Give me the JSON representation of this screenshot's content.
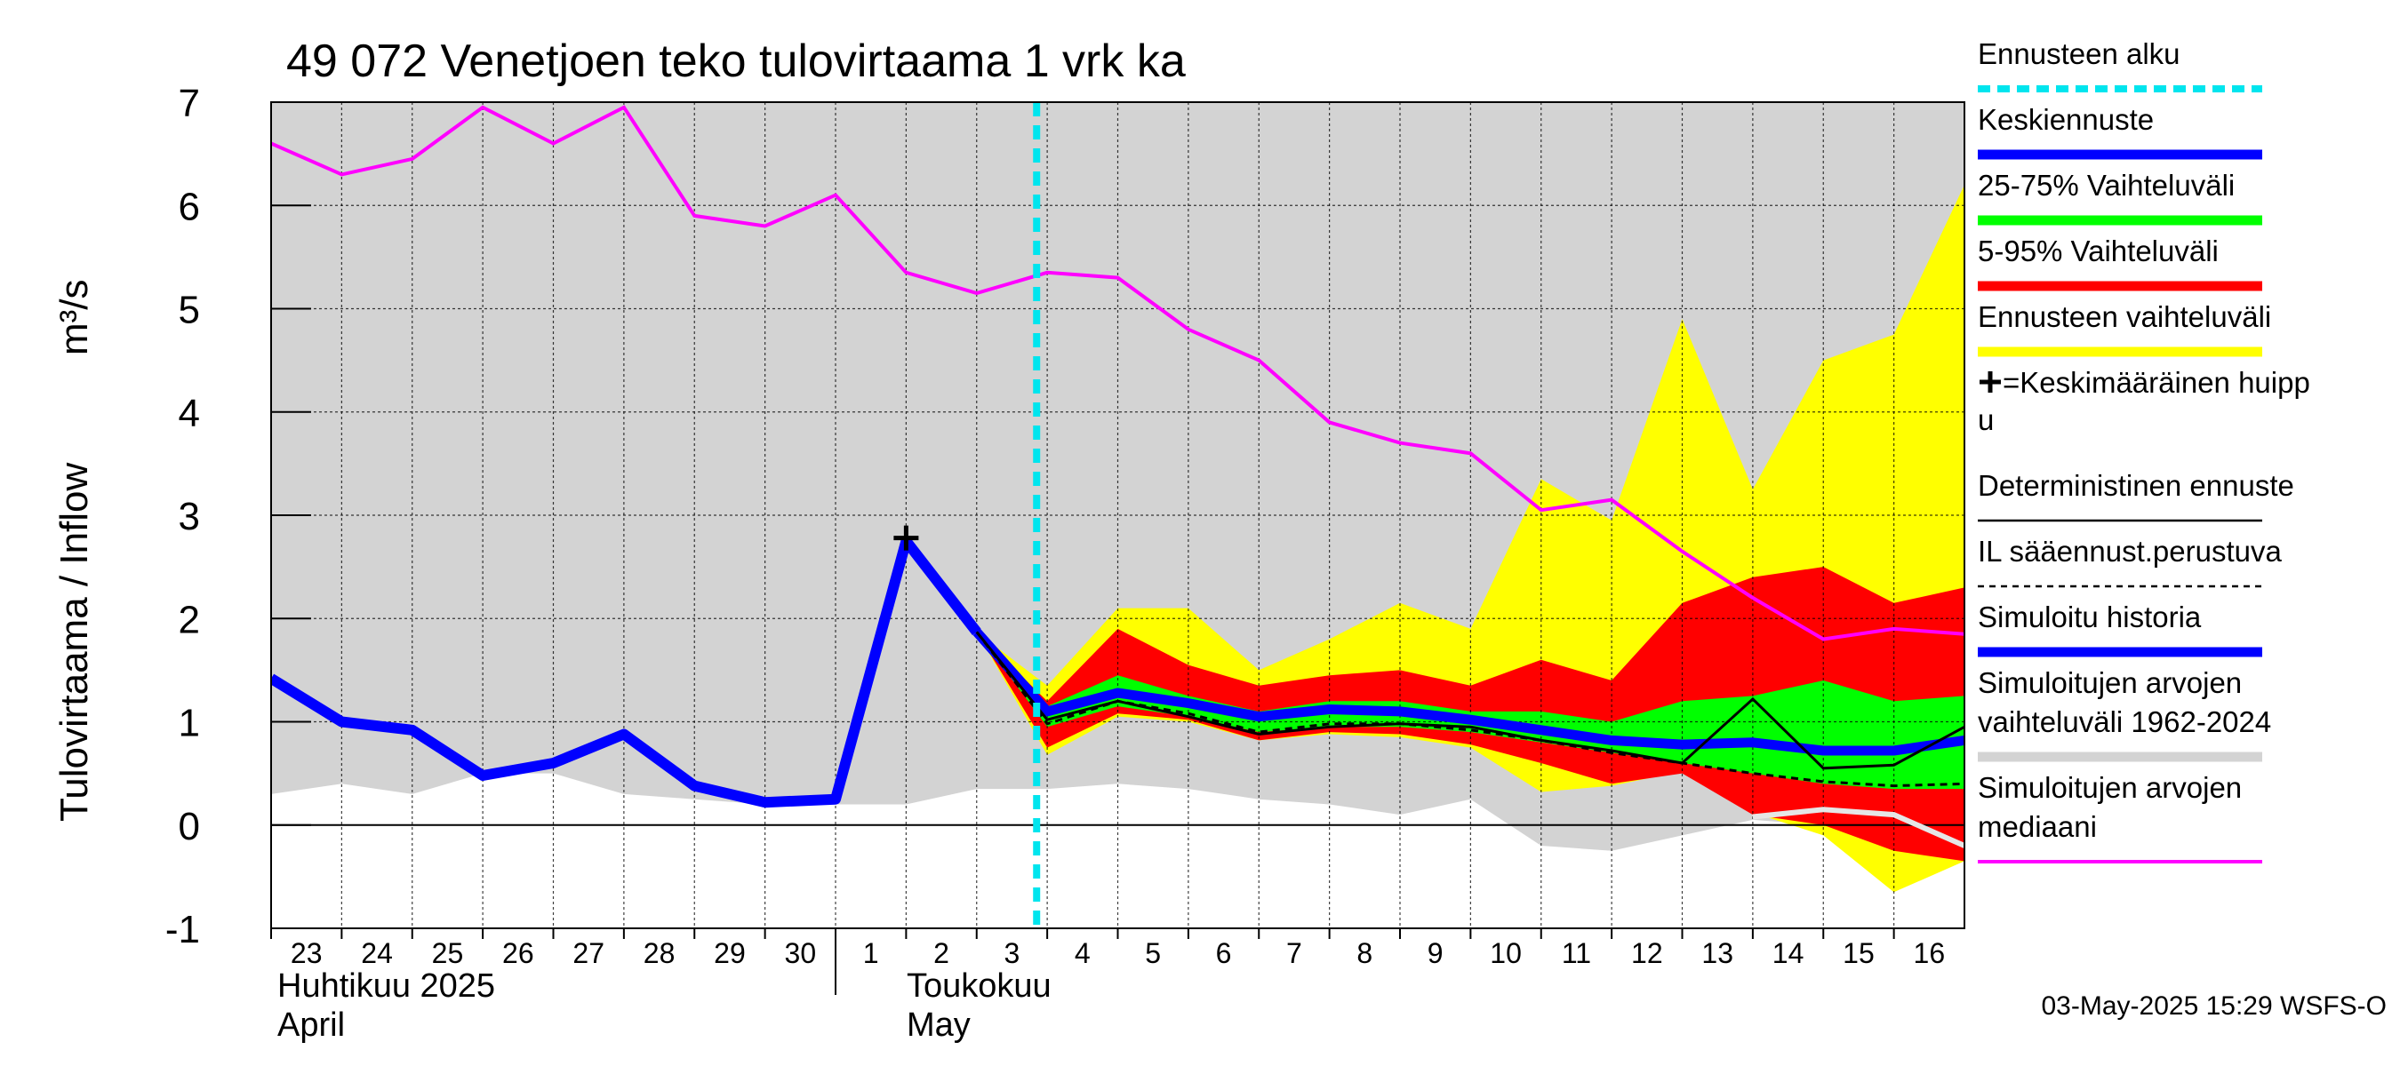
{
  "chart_data": {
    "type": "line",
    "title": "49 072 Venetjoen teko tulovirtaama 1 vrk ka",
    "ylabel": "Tulovirtaama / Inflow",
    "ylabel_unit": "m³/s",
    "ylim": [
      -1,
      7
    ],
    "yticks": [
      "-1",
      "0",
      "1",
      "2",
      "3",
      "4",
      "5",
      "6",
      "7"
    ],
    "grid": true,
    "legend_position": "right",
    "day_labels": [
      "23",
      "24",
      "25",
      "26",
      "27",
      "28",
      "29",
      "30",
      "1",
      "2",
      "3",
      "4",
      "5",
      "6",
      "7",
      "8",
      "9",
      "10",
      "11",
      "12",
      "13",
      "14",
      "15",
      "16"
    ],
    "month_labels": {
      "april_fi": "Huhtikuu  2025",
      "april_en": "April",
      "may_fi": "Toukokuu",
      "may_en": "May"
    },
    "forecast_start_day": 10.85,
    "series": {
      "sim_range": {
        "x": [
          0,
          1,
          2,
          3,
          4,
          5,
          6,
          7,
          8,
          9,
          10,
          11,
          12,
          13,
          14,
          15,
          16,
          17,
          18,
          19,
          20,
          21,
          22,
          23,
          24
        ],
        "upper": [
          7,
          7,
          7,
          7,
          7,
          7,
          7,
          7,
          7,
          7,
          7,
          7,
          7,
          7,
          7,
          7,
          7,
          7,
          7,
          7,
          7,
          7,
          7,
          7,
          7
        ],
        "lower": [
          0.3,
          0.4,
          0.3,
          0.5,
          0.5,
          0.3,
          0.25,
          0.2,
          0.2,
          0.2,
          0.35,
          0.35,
          0.4,
          0.35,
          0.25,
          0.2,
          0.1,
          0.25,
          -0.2,
          -0.25,
          -0.1,
          0.05,
          0.0,
          -0.3,
          -0.35
        ]
      },
      "sim_median": {
        "x": [
          0,
          1,
          2,
          3,
          4,
          5,
          6,
          7,
          8,
          9,
          10,
          11,
          12,
          13,
          14,
          15,
          16,
          17,
          18,
          19,
          20,
          21,
          22,
          23,
          24
        ],
        "y": [
          6.6,
          6.3,
          6.45,
          6.95,
          6.6,
          6.95,
          5.9,
          5.8,
          6.1,
          5.35,
          5.15,
          5.35,
          5.3,
          4.8,
          4.5,
          3.9,
          3.7,
          3.6,
          3.05,
          3.15,
          2.65,
          2.2,
          1.8,
          1.9,
          1.85
        ]
      },
      "history": {
        "x": [
          0,
          1,
          2,
          3,
          4,
          5,
          6,
          7,
          8,
          9,
          10
        ],
        "y": [
          1.42,
          1.0,
          0.92,
          0.48,
          0.6,
          0.88,
          0.38,
          0.22,
          0.25,
          2.75,
          1.87
        ]
      },
      "forecast_range": {
        "x": [
          10,
          11,
          12,
          13,
          14,
          15,
          16,
          17,
          18,
          19,
          20,
          21,
          22,
          23,
          24
        ],
        "upper": [
          1.87,
          1.35,
          2.1,
          2.1,
          1.5,
          1.8,
          2.15,
          1.9,
          3.35,
          2.95,
          4.9,
          3.25,
          4.5,
          4.75,
          6.2
        ],
        "lower": [
          1.87,
          0.68,
          1.05,
          1.0,
          0.82,
          0.88,
          0.85,
          0.75,
          0.32,
          0.38,
          0.52,
          0.12,
          -0.1,
          -0.65,
          -0.35
        ]
      },
      "range_5_95": {
        "x": [
          10,
          11,
          12,
          13,
          14,
          15,
          16,
          17,
          18,
          19,
          20,
          21,
          22,
          23,
          24
        ],
        "upper": [
          1.87,
          1.2,
          1.9,
          1.55,
          1.35,
          1.45,
          1.5,
          1.35,
          1.6,
          1.4,
          2.15,
          2.4,
          2.5,
          2.15,
          2.3
        ],
        "lower": [
          1.87,
          0.75,
          1.08,
          1.02,
          0.82,
          0.9,
          0.88,
          0.78,
          0.6,
          0.4,
          0.5,
          0.1,
          0.0,
          -0.25,
          -0.35
        ]
      },
      "range_25_75": {
        "x": [
          10,
          11,
          12,
          13,
          14,
          15,
          16,
          17,
          18,
          19,
          20,
          21,
          22,
          23,
          24
        ],
        "upper": [
          1.87,
          1.15,
          1.45,
          1.25,
          1.1,
          1.2,
          1.2,
          1.1,
          1.1,
          1.0,
          1.2,
          1.25,
          1.4,
          1.2,
          1.25
        ],
        "lower": [
          1.87,
          0.95,
          1.15,
          1.05,
          0.9,
          0.95,
          0.95,
          0.9,
          0.8,
          0.7,
          0.6,
          0.5,
          0.4,
          0.35,
          0.35
        ]
      },
      "mean_forecast": {
        "x": [
          10,
          11,
          12,
          13,
          14,
          15,
          16,
          17,
          18,
          19,
          20,
          21,
          22,
          23,
          24
        ],
        "y": [
          1.87,
          1.1,
          1.28,
          1.18,
          1.05,
          1.12,
          1.1,
          1.02,
          0.92,
          0.82,
          0.78,
          0.8,
          0.72,
          0.72,
          0.82
        ]
      },
      "deterministic": {
        "x": [
          10,
          11,
          12,
          13,
          14,
          15,
          16,
          17,
          18,
          19,
          20,
          21,
          22,
          23,
          24
        ],
        "y": [
          1.87,
          1.02,
          1.2,
          1.05,
          0.88,
          0.95,
          0.98,
          0.95,
          0.82,
          0.72,
          0.6,
          1.22,
          0.55,
          0.58,
          0.95
        ]
      },
      "il_forecast": {
        "x": [
          10,
          11,
          12,
          13,
          14,
          15,
          16,
          17,
          18,
          19,
          20,
          21,
          22,
          23,
          24
        ],
        "y": [
          1.87,
          0.98,
          1.2,
          1.08,
          0.9,
          0.98,
          0.98,
          0.92,
          0.82,
          0.7,
          0.6,
          0.5,
          0.42,
          0.38,
          0.4
        ]
      },
      "forecast_median": {
        "x": [
          21,
          22,
          23,
          24
        ],
        "y": [
          0.08,
          0.15,
          0.1,
          -0.2
        ]
      },
      "mean_peak": {
        "x": 9,
        "y": 2.78
      }
    },
    "colors": {
      "sim_range": "#d3d3d3",
      "sim_median": "#ff00ff",
      "history": "#0000ff",
      "forecast_range": "#ffff00",
      "range_5_95": "#ff0000",
      "range_25_75": "#00ff00",
      "mean_forecast": "#0000ff",
      "deterministic": "#000000",
      "il_forecast": "#000000",
      "forecast_start": "#00e5ee",
      "forecast_median": "#e6e6e6"
    }
  },
  "legend": {
    "items": [
      {
        "label": "Ennusteen alku",
        "style": "dash-cyan"
      },
      {
        "label": "Keskiennuste",
        "style": "thick-blue"
      },
      {
        "label": "25-75% Vaihteluväli",
        "style": "thick-green"
      },
      {
        "label": "5-95% Vaihteluväli",
        "style": "thick-red"
      },
      {
        "label": "Ennusteen vaihteluväli",
        "style": "thick-yellow"
      },
      {
        "label": "=Keskimääräinen huipp",
        "label2": "u",
        "style": "plus"
      },
      {
        "label": "Deterministinen ennuste",
        "style": "thin-black"
      },
      {
        "label": "IL sääennust.perustuva",
        "style": "dash-black"
      },
      {
        "label": "Simuloitu historia",
        "style": "thick-blue"
      },
      {
        "label": "Simuloitujen arvojen",
        "label2": "vaihteluväli 1962-2024",
        "style": "thick-grey"
      },
      {
        "label": "Simuloitujen arvojen",
        "label2": "mediaani",
        "style": "magenta"
      }
    ]
  },
  "footer": {
    "timestamp": "03-May-2025 15:29 WSFS-O"
  }
}
